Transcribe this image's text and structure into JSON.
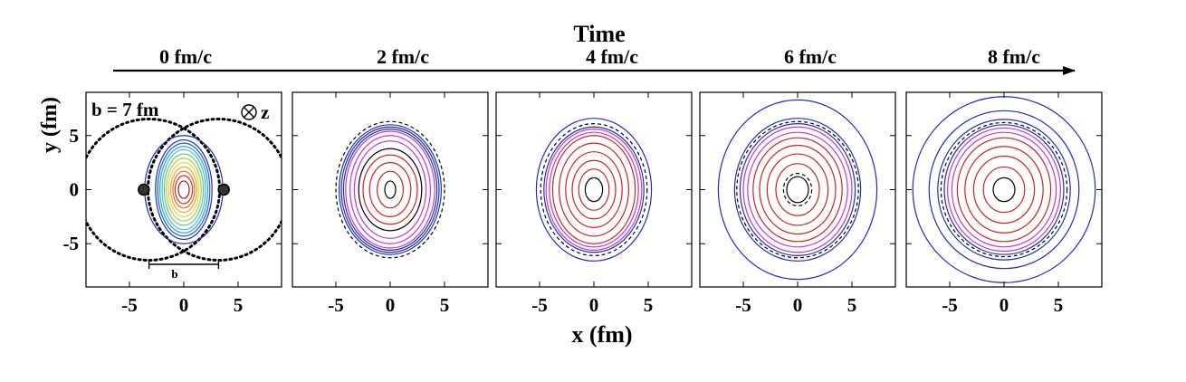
{
  "chart_data": {
    "type": "contour",
    "title": "Time",
    "xlabel": "x (fm)",
    "ylabel": "y (fm)",
    "xlim": [
      -9,
      9
    ],
    "ylim": [
      -9,
      9
    ],
    "xticks": [
      "-5",
      "0",
      "5"
    ],
    "yticks": [
      "5",
      "0",
      "-5"
    ],
    "grid": false,
    "panels": [
      {
        "time_label": "0 fm/c",
        "annotation": "b = 7 fm",
        "beam_label": "z",
        "impact_label": "b",
        "nucleus_radius": 6.5,
        "nucleus_centers": [
          -3.2,
          3.2
        ],
        "contours": [
          {
            "rx": 3.6,
            "ry": 5.0,
            "color": "#1f2dbf"
          },
          {
            "rx": 2.6,
            "ry": 4.6,
            "color": "#1f2dbf"
          },
          {
            "rx": 2.4,
            "ry": 4.3,
            "color": "#1a5fd6"
          },
          {
            "rx": 2.2,
            "ry": 4.0,
            "color": "#2aa0e6"
          },
          {
            "rx": 2.0,
            "ry": 3.7,
            "color": "#35c4c4"
          },
          {
            "rx": 1.8,
            "ry": 3.3,
            "color": "#5cc97a"
          },
          {
            "rx": 1.6,
            "ry": 2.9,
            "color": "#a6d24a"
          },
          {
            "rx": 1.4,
            "ry": 2.5,
            "color": "#e8d43a"
          },
          {
            "rx": 1.2,
            "ry": 2.1,
            "color": "#f2a62a"
          },
          {
            "rx": 1.0,
            "ry": 1.7,
            "color": "#ef6a22"
          },
          {
            "rx": 0.8,
            "ry": 1.3,
            "color": "#e02a1e"
          },
          {
            "rx": 0.5,
            "ry": 0.8,
            "color": "#a5121b"
          }
        ]
      },
      {
        "time_label": "2 fm/c",
        "contours": [
          {
            "rx": 5.0,
            "ry": 6.3,
            "color": "#000000",
            "dashed": true
          },
          {
            "rx": 4.7,
            "ry": 6.0,
            "color": "#1f2dbf"
          },
          {
            "rx": 4.5,
            "ry": 5.8,
            "color": "#1f2dbf"
          },
          {
            "rx": 4.3,
            "ry": 5.6,
            "color": "#1f2dbf"
          },
          {
            "rx": 4.1,
            "ry": 5.4,
            "color": "#c236d6"
          },
          {
            "rx": 3.7,
            "ry": 5.0,
            "color": "#c236d6"
          },
          {
            "rx": 3.3,
            "ry": 4.5,
            "color": "#c236d6"
          },
          {
            "rx": 2.9,
            "ry": 3.8,
            "color": "#000000"
          },
          {
            "rx": 2.5,
            "ry": 3.2,
            "color": "#d42020"
          },
          {
            "rx": 1.9,
            "ry": 2.5,
            "color": "#d42020"
          },
          {
            "rx": 1.2,
            "ry": 1.7,
            "color": "#d42020"
          },
          {
            "rx": 0.5,
            "ry": 0.8,
            "color": "#000000"
          }
        ]
      },
      {
        "time_label": "4 fm/c",
        "contours": [
          {
            "rx": 5.3,
            "ry": 6.6,
            "color": "#1f2dbf"
          },
          {
            "rx": 4.9,
            "ry": 6.1,
            "color": "#000000",
            "dashed": true
          },
          {
            "rx": 4.6,
            "ry": 5.8,
            "color": "#1f2dbf"
          },
          {
            "rx": 4.4,
            "ry": 5.6,
            "color": "#c236d6"
          },
          {
            "rx": 4.1,
            "ry": 5.3,
            "color": "#c236d6"
          },
          {
            "rx": 3.8,
            "ry": 5.0,
            "color": "#d42020"
          },
          {
            "rx": 3.2,
            "ry": 4.3,
            "color": "#d42020"
          },
          {
            "rx": 2.6,
            "ry": 3.5,
            "color": "#d42020"
          },
          {
            "rx": 2.0,
            "ry": 2.7,
            "color": "#d42020"
          },
          {
            "rx": 1.4,
            "ry": 1.9,
            "color": "#d42020"
          },
          {
            "rx": 0.8,
            "ry": 1.1,
            "color": "#000000"
          }
        ]
      },
      {
        "time_label": "6 fm/c",
        "contours": [
          {
            "rx": 7.3,
            "ry": 8.3,
            "color": "#1f2dbf"
          },
          {
            "rx": 5.8,
            "ry": 6.6,
            "color": "#1f2dbf"
          },
          {
            "rx": 5.6,
            "ry": 6.3,
            "color": "#000000",
            "dashed": true
          },
          {
            "rx": 5.3,
            "ry": 6.1,
            "color": "#1f2dbf"
          },
          {
            "rx": 5.0,
            "ry": 5.8,
            "color": "#c236d6"
          },
          {
            "rx": 4.6,
            "ry": 5.3,
            "color": "#c236d6"
          },
          {
            "rx": 4.1,
            "ry": 4.8,
            "color": "#d42020"
          },
          {
            "rx": 3.5,
            "ry": 4.1,
            "color": "#d42020"
          },
          {
            "rx": 2.8,
            "ry": 3.3,
            "color": "#d42020"
          },
          {
            "rx": 2.0,
            "ry": 2.4,
            "color": "#d42020"
          },
          {
            "rx": 1.3,
            "ry": 1.5,
            "color": "#000000",
            "dashed": true
          },
          {
            "rx": 1.0,
            "ry": 1.2,
            "color": "#000000"
          }
        ]
      },
      {
        "time_label": "8 fm/c",
        "contours": [
          {
            "rx": 8.4,
            "ry": 8.6,
            "color": "#1f2dbf"
          },
          {
            "rx": 6.9,
            "ry": 7.3,
            "color": "#1f2dbf"
          },
          {
            "rx": 6.1,
            "ry": 6.5,
            "color": "#1f2dbf"
          },
          {
            "rx": 5.8,
            "ry": 6.2,
            "color": "#000000",
            "dashed": true
          },
          {
            "rx": 5.5,
            "ry": 6.0,
            "color": "#1f2dbf"
          },
          {
            "rx": 5.2,
            "ry": 5.7,
            "color": "#c236d6"
          },
          {
            "rx": 4.8,
            "ry": 5.3,
            "color": "#c236d6"
          },
          {
            "rx": 4.3,
            "ry": 4.8,
            "color": "#d42020"
          },
          {
            "rx": 3.6,
            "ry": 4.0,
            "color": "#d42020"
          },
          {
            "rx": 2.8,
            "ry": 3.1,
            "color": "#d42020"
          },
          {
            "rx": 1.9,
            "ry": 2.1,
            "color": "#d42020"
          },
          {
            "rx": 1.0,
            "ry": 1.1,
            "color": "#000000"
          }
        ]
      }
    ]
  }
}
